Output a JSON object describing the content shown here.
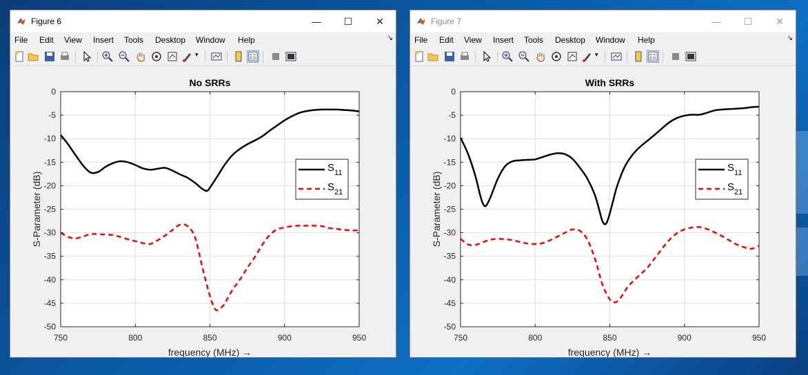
{
  "figures": [
    {
      "window_title": "Figure 6",
      "active": true,
      "menu": [
        "File",
        "Edit",
        "View",
        "Insert",
        "Tools",
        "Desktop",
        "Window",
        "Help"
      ],
      "chart_data": {
        "type": "line",
        "title": "No SRRs",
        "xlabel": "frequency (MHz) →",
        "ylabel": "S-Parameter (dB)",
        "xlim": [
          750,
          950
        ],
        "ylim": [
          -50,
          0
        ],
        "xticks": [
          "750",
          "800",
          "850",
          "900",
          "950"
        ],
        "yticks": [
          "0",
          "-5",
          "-10",
          "-15",
          "-20",
          "-25",
          "-30",
          "-35",
          "-40",
          "-45",
          "-50"
        ],
        "grid": true,
        "legend_position": "right-middle",
        "series": [
          {
            "name": "S11",
            "label_main": "S",
            "label_sub": "11",
            "color": "#000000",
            "dash": "solid",
            "x": [
              750,
              755,
              760,
              765,
              770,
              775,
              780,
              785,
              790,
              795,
              800,
              805,
              810,
              815,
              820,
              825,
              830,
              835,
              840,
              845,
              848,
              850,
              855,
              860,
              865,
              870,
              875,
              880,
              885,
              890,
              895,
              900,
              905,
              910,
              915,
              920,
              925,
              930,
              935,
              940,
              945,
              950
            ],
            "y": [
              -9.2,
              -11.2,
              -13.5,
              -15.7,
              -17.2,
              -17.1,
              -16,
              -15.2,
              -14.8,
              -15,
              -15.6,
              -16.3,
              -16.6,
              -16.4,
              -16.2,
              -16.8,
              -17.6,
              -18.3,
              -19.4,
              -20.7,
              -21.1,
              -20.4,
              -18,
              -15.5,
              -13.5,
              -12.2,
              -11.2,
              -10.4,
              -9.5,
              -8.3,
              -7.2,
              -6.1,
              -5.2,
              -4.5,
              -4.1,
              -3.9,
              -3.8,
              -3.8,
              -3.8,
              -3.9,
              -4,
              -4.2
            ]
          },
          {
            "name": "S21",
            "label_main": "S",
            "label_sub": "21",
            "color": "#ff0000",
            "dash": "dashed",
            "x": [
              750,
              755,
              760,
              765,
              770,
              775,
              780,
              785,
              790,
              795,
              800,
              805,
              810,
              815,
              820,
              825,
              830,
              835,
              840,
              845,
              850,
              853,
              855,
              858,
              860,
              865,
              870,
              875,
              880,
              885,
              890,
              895,
              900,
              905,
              910,
              915,
              920,
              925,
              930,
              935,
              940,
              945,
              950
            ],
            "y": [
              -30,
              -30.9,
              -31.2,
              -30.8,
              -30.3,
              -30.3,
              -30.4,
              -30.5,
              -30.9,
              -31.4,
              -31.8,
              -32.2,
              -32.4,
              -31.6,
              -30.6,
              -29.4,
              -28.3,
              -28.6,
              -31,
              -37.5,
              -43.5,
              -46,
              -46.5,
              -45.8,
              -45,
              -42.2,
              -40,
              -37.5,
              -35.2,
              -32.6,
              -30.5,
              -29.3,
              -28.9,
              -28.6,
              -28.5,
              -28.5,
              -28.5,
              -28.6,
              -29,
              -29.2,
              -29.4,
              -29.5,
              -29.5
            ]
          }
        ]
      }
    },
    {
      "window_title": "Figure 7",
      "active": false,
      "menu": [
        "File",
        "Edit",
        "View",
        "Insert",
        "Tools",
        "Desktop",
        "Window",
        "Help"
      ],
      "chart_data": {
        "type": "line",
        "title": "With SRRs",
        "xlabel": "frequency (MHz) →",
        "ylabel": "S-Parameter (dB)",
        "xlim": [
          750,
          950
        ],
        "ylim": [
          -50,
          0
        ],
        "xticks": [
          "750",
          "800",
          "850",
          "900",
          "950"
        ],
        "yticks": [
          "0",
          "-5",
          "-10",
          "-15",
          "-20",
          "-25",
          "-30",
          "-35",
          "-40",
          "-45",
          "-50"
        ],
        "grid": true,
        "legend_position": "right-middle",
        "series": [
          {
            "name": "S11",
            "label_main": "S",
            "label_sub": "11",
            "color": "#000000",
            "dash": "solid",
            "x": [
              750,
              755,
              760,
              763,
              765,
              767,
              770,
              775,
              780,
              785,
              790,
              795,
              800,
              805,
              810,
              815,
              820,
              825,
              830,
              835,
              840,
              843,
              845,
              847,
              849,
              852,
              855,
              860,
              865,
              870,
              875,
              880,
              885,
              890,
              895,
              900,
              905,
              910,
              915,
              920,
              925,
              930,
              935,
              940,
              945,
              950
            ],
            "y": [
              -9.8,
              -13.2,
              -18,
              -21.8,
              -23.8,
              -24.3,
              -22.5,
              -18.5,
              -15.8,
              -14.8,
              -14.6,
              -14.5,
              -14.4,
              -13.9,
              -13.4,
              -13.1,
              -13.3,
              -14.3,
              -16.2,
              -18.5,
              -22,
              -25.2,
              -27.5,
              -28.2,
              -27,
              -23.5,
              -20,
              -16,
              -13.5,
              -11.8,
              -10.5,
              -9.2,
              -7.8,
              -6.5,
              -5.6,
              -5.1,
              -4.9,
              -4.9,
              -4.5,
              -4,
              -3.8,
              -3.7,
              -3.6,
              -3.5,
              -3.3,
              -3.2
            ]
          },
          {
            "name": "S21",
            "label_main": "S",
            "label_sub": "21",
            "color": "#ff0000",
            "dash": "dashed",
            "x": [
              750,
              755,
              760,
              765,
              770,
              775,
              780,
              785,
              790,
              795,
              800,
              805,
              810,
              815,
              820,
              825,
              830,
              835,
              840,
              845,
              850,
              853,
              855,
              858,
              862,
              865,
              870,
              875,
              880,
              885,
              890,
              895,
              900,
              905,
              910,
              915,
              920,
              925,
              930,
              935,
              940,
              945,
              950
            ],
            "y": [
              -31.3,
              -32.5,
              -32.6,
              -32,
              -31.5,
              -31.3,
              -31.4,
              -31.6,
              -32,
              -32.3,
              -32.4,
              -32.2,
              -31.6,
              -30.8,
              -30,
              -29.3,
              -29.6,
              -31.5,
              -35.5,
              -41,
              -44.2,
              -44.8,
              -44.6,
              -43.5,
              -41.5,
              -40.5,
              -39,
              -37.5,
              -35.5,
              -33.4,
              -31.5,
              -30.1,
              -29.3,
              -28.9,
              -28.8,
              -29.2,
              -29.9,
              -30.7,
              -31.6,
              -32.5,
              -33.1,
              -33.4,
              -32.8
            ]
          }
        ]
      }
    }
  ]
}
